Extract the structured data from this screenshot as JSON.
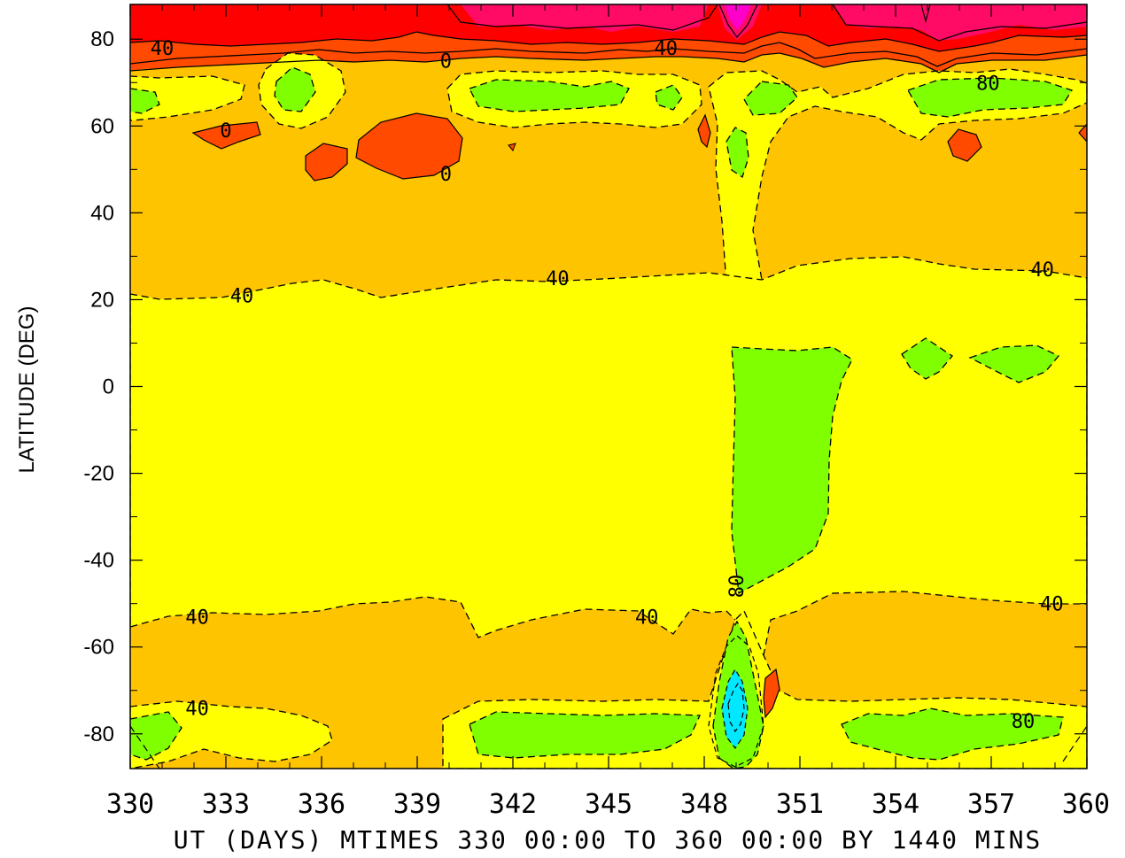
{
  "chart_data": {
    "type": "contour",
    "title": "",
    "xlabel": "UT (DAYS) MTIMES 330 00:00 TO 360 00:00 BY 1440 MINS",
    "ylabel": "LATITUDE (DEG)",
    "xlim": [
      330,
      360
    ],
    "ylim": [
      -88,
      88
    ],
    "x_ticks": [
      "330",
      "333",
      "336",
      "339",
      "342",
      "345",
      "348",
      "351",
      "354",
      "357",
      "360"
    ],
    "y_ticks": [
      "80",
      "60",
      "40",
      "20",
      "0",
      "-20",
      "-40",
      "-60",
      "-80"
    ],
    "contour_labels": [
      {
        "text": "40",
        "x": 331.0,
        "y": 78
      },
      {
        "text": "0",
        "x": 339.9,
        "y": 75
      },
      {
        "text": "40",
        "x": 346.8,
        "y": 78
      },
      {
        "text": "80",
        "x": 356.9,
        "y": 70
      },
      {
        "text": "0",
        "x": 333.0,
        "y": 59
      },
      {
        "text": "0",
        "x": 339.9,
        "y": 49
      },
      {
        "text": "40",
        "x": 333.5,
        "y": 21
      },
      {
        "text": "40",
        "x": 343.4,
        "y": 25
      },
      {
        "text": "40",
        "x": 358.6,
        "y": 27
      },
      {
        "text": "80",
        "x": 349.0,
        "y": -46
      },
      {
        "text": "40",
        "x": 332.1,
        "y": -53
      },
      {
        "text": "40",
        "x": 346.2,
        "y": -53
      },
      {
        "text": "40",
        "x": 358.9,
        "y": -50
      },
      {
        "text": "40",
        "x": 332.1,
        "y": -74
      },
      {
        "text": "80",
        "x": 358.0,
        "y": -77
      }
    ],
    "colors": {
      "red": "#ff0000",
      "orange_red": "#ff4a00",
      "orange": "#ffc400",
      "yellow": "#ffff00",
      "green": "#80ff00",
      "cyan": "#00e8ff",
      "pink": "#ff0a64",
      "magenta": "#ff00cc",
      "contour_line": "#000000"
    }
  }
}
